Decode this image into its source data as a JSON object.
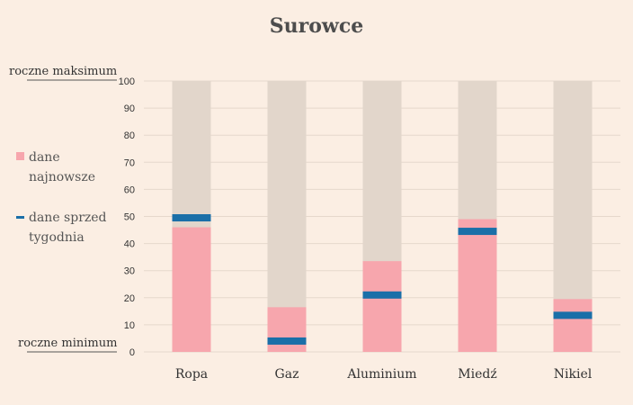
{
  "chart_data": {
    "type": "bar",
    "title": "Surowce",
    "categories": [
      "Ropa",
      "Gaz",
      "Aluminium",
      "Miedź",
      "Nikiel"
    ],
    "series": [
      {
        "name": "dane najnowsze",
        "values": [
          46,
          16.5,
          33.5,
          49,
          19.5
        ]
      },
      {
        "name": "dane sprzed tygodnia",
        "values": [
          49.5,
          4,
          21,
          44.5,
          13.5
        ]
      }
    ],
    "ylim": [
      0,
      100
    ],
    "yticks": [
      0,
      10,
      20,
      30,
      40,
      50,
      60,
      70,
      80,
      90,
      100
    ],
    "annotations": {
      "max_label": "roczne maksimum",
      "min_label": "roczne minimum"
    },
    "legend": {
      "latest_lines": [
        "dane",
        "najnowsze"
      ],
      "week_ago_lines": [
        "dane sprzed",
        "tygodnia"
      ]
    },
    "colors": {
      "background": "#fbeee3",
      "range_bar": "#e2d6cb",
      "latest": "#f7a6ad",
      "week_ago": "#1a6fa8",
      "grid": "#e6d8cc"
    }
  }
}
